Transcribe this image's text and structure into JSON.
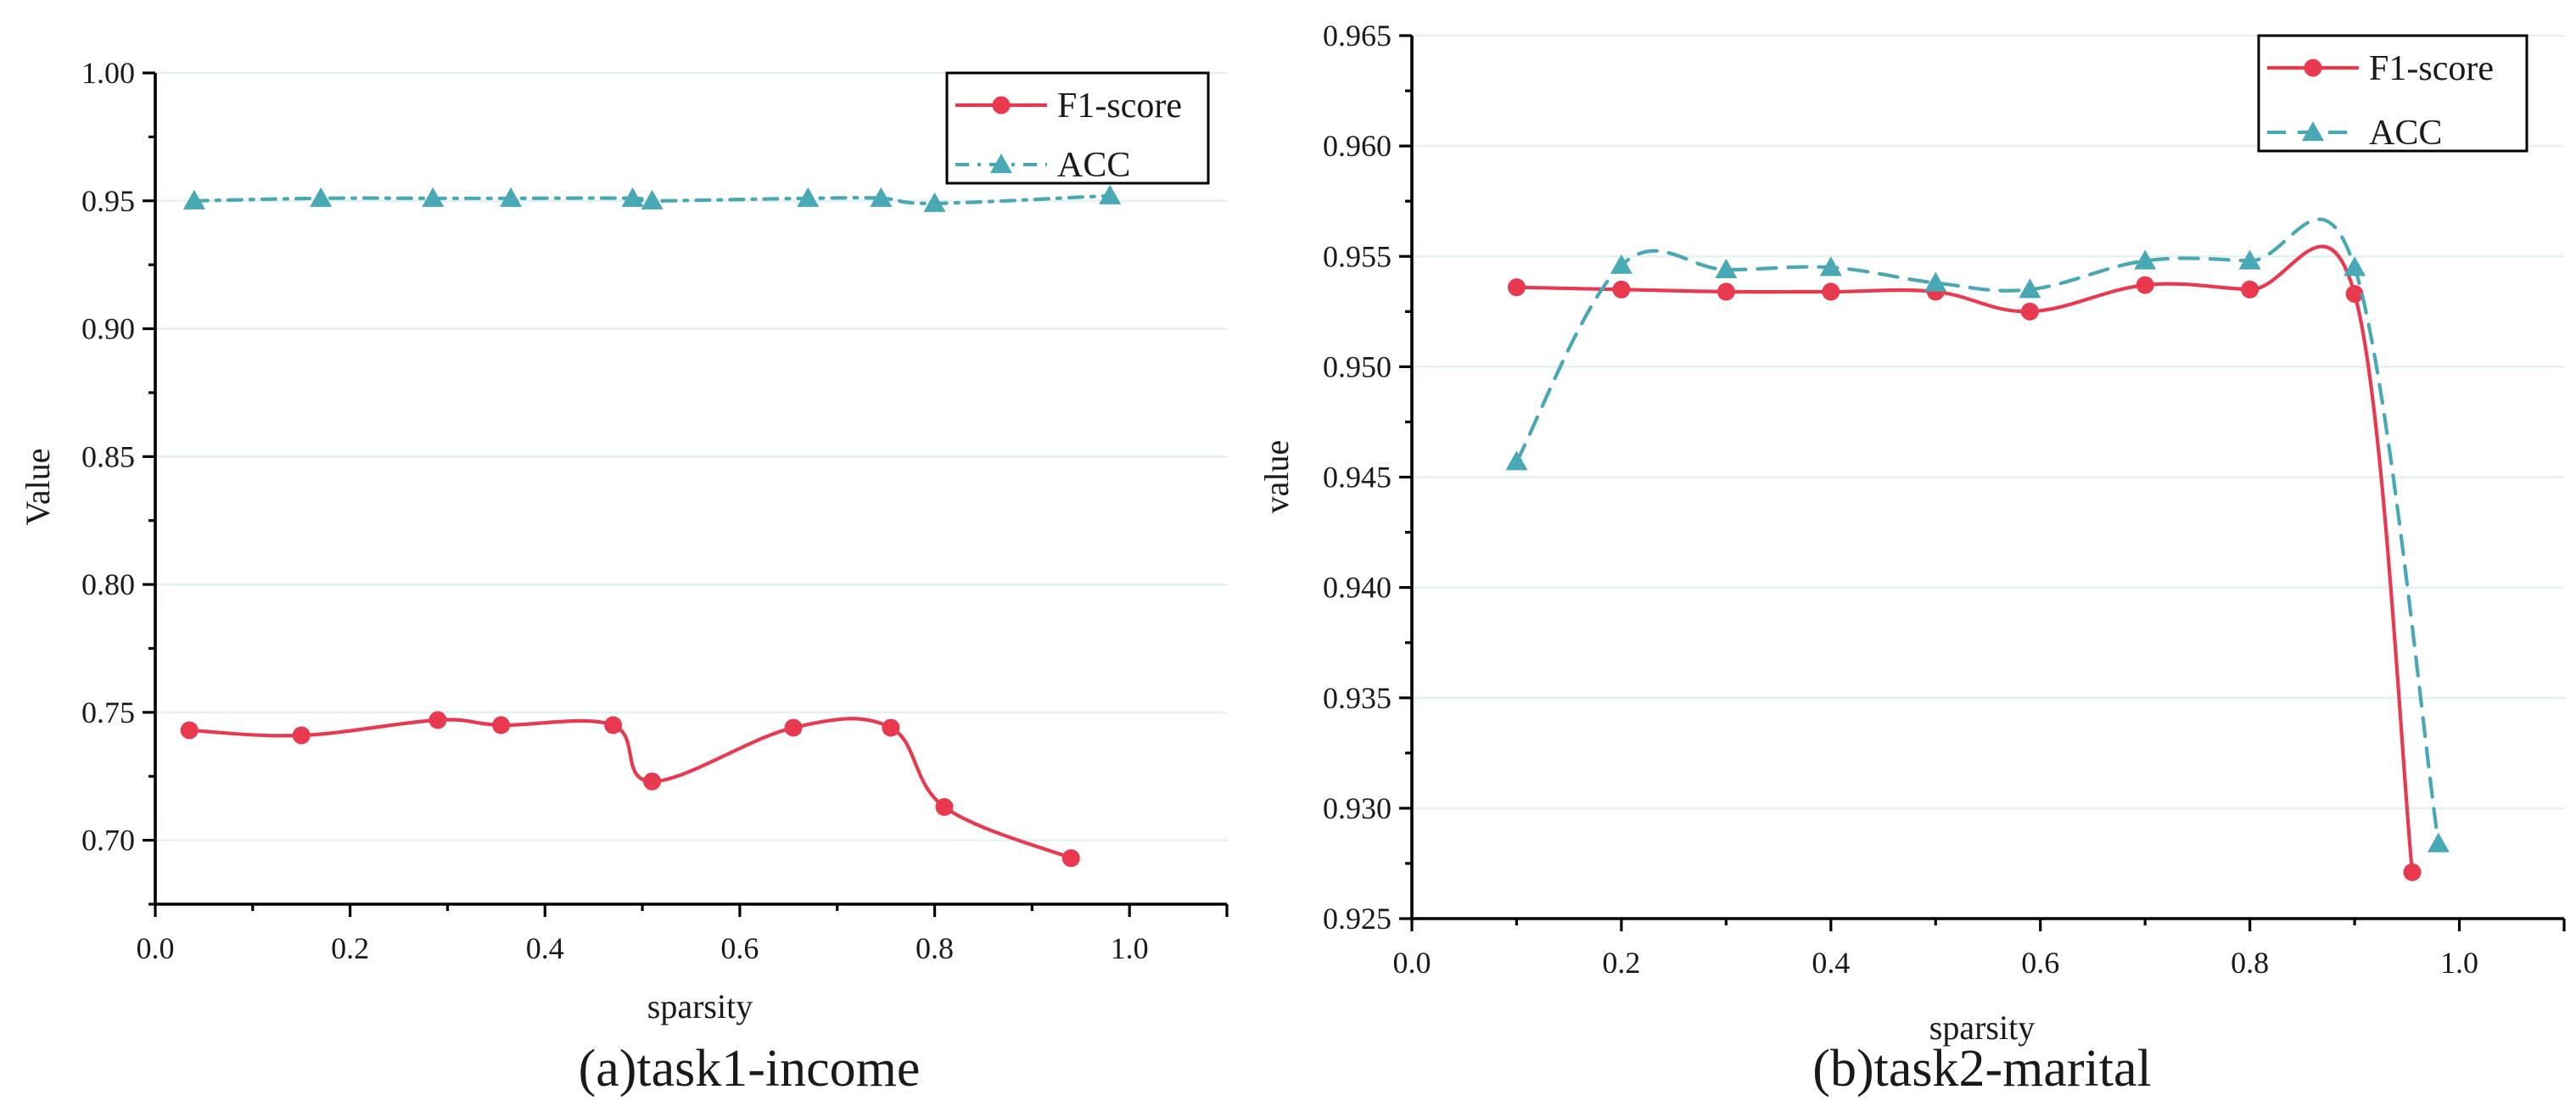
{
  "colors": {
    "f1": "#e8394f",
    "acc": "#48a8b4",
    "grid": "#e3f2ef"
  },
  "chart_data": [
    {
      "type": "line",
      "title": "(a)task1-income",
      "xlabel": "sparsity",
      "ylabel": "Value",
      "xlim": [
        0.0,
        1.1
      ],
      "ylim": [
        0.675,
        1.0
      ],
      "xticks": [
        0.0,
        0.2,
        0.4,
        0.6,
        0.8,
        1.0
      ],
      "xtick_labels": [
        "0.0",
        "0.2",
        "0.4",
        "0.6",
        "0.8",
        "1.0"
      ],
      "yticks": [
        0.7,
        0.75,
        0.8,
        0.85,
        0.9,
        0.95,
        1.0
      ],
      "ytick_labels": [
        "0.70",
        "0.75",
        "0.80",
        "0.85",
        "0.90",
        "0.95",
        "1.00"
      ],
      "legend_position": "top-right",
      "series": [
        {
          "name": "F1-score",
          "color_key": "f1",
          "marker": "circle",
          "dash": "solid",
          "x": [
            0.035,
            0.15,
            0.29,
            0.355,
            0.47,
            0.51,
            0.655,
            0.755,
            0.81,
            0.94
          ],
          "y": [
            0.743,
            0.741,
            0.747,
            0.745,
            0.745,
            0.723,
            0.744,
            0.744,
            0.713,
            0.693
          ]
        },
        {
          "name": "ACC",
          "color_key": "acc",
          "marker": "triangle",
          "dash": "dash-dot",
          "x": [
            0.04,
            0.17,
            0.285,
            0.365,
            0.49,
            0.51,
            0.67,
            0.745,
            0.8,
            0.98
          ],
          "y": [
            0.95,
            0.951,
            0.951,
            0.951,
            0.951,
            0.95,
            0.951,
            0.951,
            0.949,
            0.952
          ]
        }
      ]
    },
    {
      "type": "line",
      "title": "(b)task2-marital",
      "xlabel": "sparsity",
      "ylabel": "value",
      "xlim": [
        0.0,
        1.1
      ],
      "ylim": [
        0.925,
        0.965
      ],
      "xticks": [
        0.0,
        0.2,
        0.4,
        0.6,
        0.8,
        1.0
      ],
      "xtick_labels": [
        "0.0",
        "0.2",
        "0.4",
        "0.6",
        "0.8",
        "1.0"
      ],
      "yticks": [
        0.925,
        0.93,
        0.935,
        0.94,
        0.945,
        0.95,
        0.955,
        0.96,
        0.965
      ],
      "ytick_labels": [
        "0.925",
        "0.930",
        "0.935",
        "0.940",
        "0.945",
        "0.950",
        "0.955",
        "0.960",
        "0.965"
      ],
      "legend_position": "top-right",
      "series": [
        {
          "name": "F1-score",
          "color_key": "f1",
          "marker": "circle",
          "dash": "solid",
          "x": [
            0.1,
            0.2,
            0.3,
            0.4,
            0.5,
            0.59,
            0.7,
            0.8,
            0.9,
            0.955
          ],
          "y": [
            0.9536,
            0.9535,
            0.9534,
            0.9534,
            0.9534,
            0.9525,
            0.9537,
            0.9535,
            0.9533,
            0.9271
          ]
        },
        {
          "name": "ACC",
          "color_key": "acc",
          "marker": "triangle",
          "dash": "dashed",
          "x": [
            0.1,
            0.2,
            0.3,
            0.4,
            0.5,
            0.59,
            0.7,
            0.8,
            0.9,
            0.98
          ],
          "y": [
            0.9457,
            0.9546,
            0.9544,
            0.9545,
            0.9538,
            0.9535,
            0.9548,
            0.9548,
            0.9545,
            0.9284
          ]
        }
      ]
    }
  ]
}
